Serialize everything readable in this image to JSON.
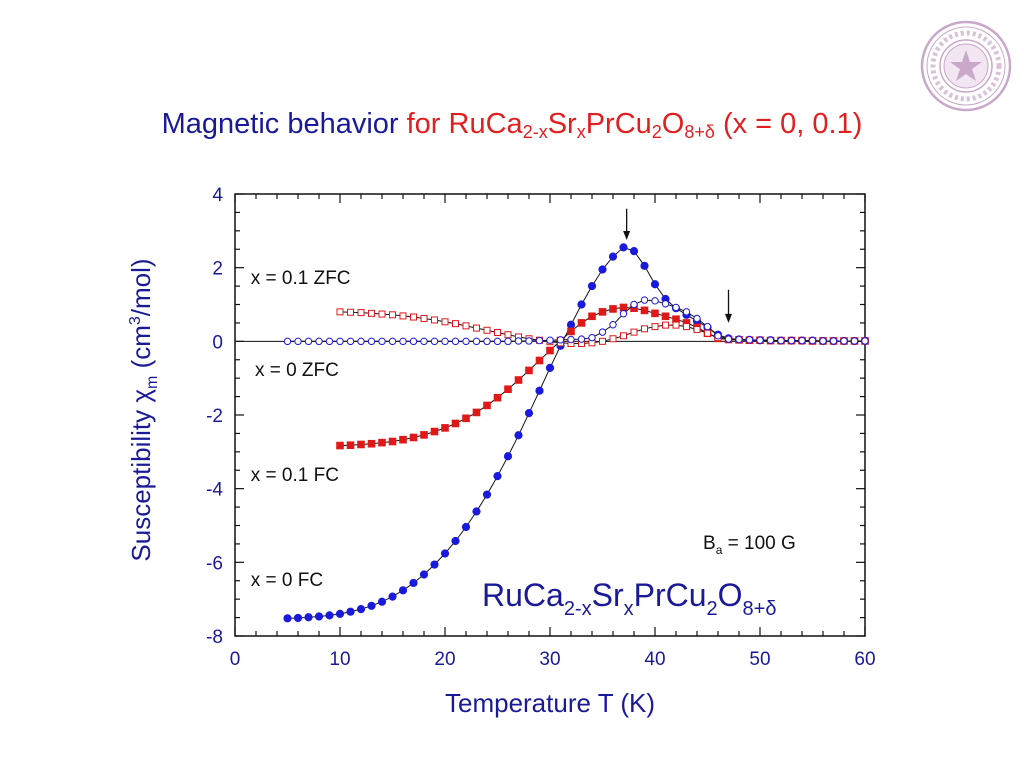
{
  "title": {
    "part1": "Magnetic behavior ",
    "part2": "for ",
    "formula_main": "RuCa",
    "sub1": "2-x",
    "f2": "Sr",
    "sub2": "x",
    "f3": "PrCu",
    "sub3": "2",
    "f4": "O",
    "sub4": "8+δ",
    "tail": " (x = 0, 0.1)"
  },
  "seal": {
    "name": "university-seal",
    "color": "#c9a8c9"
  },
  "colors": {
    "blue": "#1a1add",
    "red": "#e01818",
    "axis_text": "#1a1a99",
    "line": "#111111"
  },
  "chart_data": {
    "type": "scatter",
    "xlabel": "Temperature  T (K)",
    "ylabel_main": "Susceptibility  χ",
    "ylabel_sub": "m",
    "ylabel_unit_pre": "  (cm",
    "ylabel_unit_sup": "3",
    "ylabel_unit_post": "/mol)",
    "xlim": [
      0,
      60
    ],
    "ylim": [
      -8,
      4
    ],
    "xticks": [
      "0",
      "10",
      "20",
      "30",
      "40",
      "50",
      "60"
    ],
    "yticks": [
      "4",
      "2",
      "0",
      "-2",
      "-4",
      "-6",
      "-8"
    ],
    "annotations": [
      {
        "text": "x = 0.1 ZFC",
        "x": 1.5,
        "y": 1.75
      },
      {
        "text": "x = 0 ZFC",
        "x": 1.9,
        "y": -0.75
      },
      {
        "text": "x = 0.1 FC",
        "x": 1.5,
        "y": -3.6
      },
      {
        "text": "x = 0 FC",
        "x": 1.5,
        "y": -6.45
      }
    ],
    "field_label": {
      "pre": "B",
      "sub": "a",
      "post": " = 100 G"
    },
    "formula_label": {
      "a": "RuCa",
      "b": "2-x",
      "c": "Sr",
      "d": "x",
      "e": "PrCu",
      "f": "2",
      "g": "O",
      "h": "8+δ"
    },
    "arrows": [
      {
        "x": 37.3,
        "y_from": 3.6,
        "y_to": 2.75
      },
      {
        "x": 47.0,
        "y_from": 1.4,
        "y_to": 0.5
      }
    ],
    "series": [
      {
        "name": "x = 0 FC",
        "marker": "circle",
        "filled": true,
        "color": "#1a1add",
        "points": [
          [
            5,
            -7.52
          ],
          [
            6,
            -7.51
          ],
          [
            7,
            -7.49
          ],
          [
            8,
            -7.47
          ],
          [
            9,
            -7.44
          ],
          [
            10,
            -7.4
          ],
          [
            11,
            -7.34
          ],
          [
            12,
            -7.27
          ],
          [
            13,
            -7.18
          ],
          [
            14,
            -7.07
          ],
          [
            15,
            -6.93
          ],
          [
            16,
            -6.76
          ],
          [
            17,
            -6.56
          ],
          [
            18,
            -6.33
          ],
          [
            19,
            -6.06
          ],
          [
            20,
            -5.76
          ],
          [
            21,
            -5.42
          ],
          [
            22,
            -5.04
          ],
          [
            23,
            -4.62
          ],
          [
            24,
            -4.16
          ],
          [
            25,
            -3.66
          ],
          [
            26,
            -3.12
          ],
          [
            27,
            -2.55
          ],
          [
            28,
            -1.95
          ],
          [
            29,
            -1.34
          ],
          [
            30,
            -0.72
          ],
          [
            31,
            -0.12
          ],
          [
            32,
            0.45
          ],
          [
            33,
            1.0
          ],
          [
            34,
            1.5
          ],
          [
            35,
            1.95
          ],
          [
            36,
            2.3
          ],
          [
            37,
            2.55
          ],
          [
            38,
            2.45
          ],
          [
            39,
            2.05
          ],
          [
            40,
            1.55
          ],
          [
            41,
            1.15
          ],
          [
            42,
            0.9
          ],
          [
            43,
            0.72
          ],
          [
            44,
            0.55
          ],
          [
            45,
            0.38
          ],
          [
            46,
            0.18
          ],
          [
            47,
            0.08
          ],
          [
            48,
            0.05
          ],
          [
            49,
            0.04
          ],
          [
            50,
            0.03
          ],
          [
            51,
            0.03
          ],
          [
            52,
            0.02
          ],
          [
            53,
            0.02
          ],
          [
            54,
            0.02
          ],
          [
            55,
            0.02
          ],
          [
            56,
            0.01
          ],
          [
            57,
            0.01
          ],
          [
            58,
            0.01
          ],
          [
            59,
            0.01
          ],
          [
            60,
            0.01
          ]
        ]
      },
      {
        "name": "x = 0.1 FC",
        "marker": "square",
        "filled": true,
        "color": "#e01818",
        "points": [
          [
            10,
            -2.83
          ],
          [
            11,
            -2.82
          ],
          [
            12,
            -2.8
          ],
          [
            13,
            -2.78
          ],
          [
            14,
            -2.75
          ],
          [
            15,
            -2.72
          ],
          [
            16,
            -2.67
          ],
          [
            17,
            -2.61
          ],
          [
            18,
            -2.54
          ],
          [
            19,
            -2.45
          ],
          [
            20,
            -2.35
          ],
          [
            21,
            -2.23
          ],
          [
            22,
            -2.09
          ],
          [
            23,
            -1.93
          ],
          [
            24,
            -1.74
          ],
          [
            25,
            -1.53
          ],
          [
            26,
            -1.3
          ],
          [
            27,
            -1.05
          ],
          [
            28,
            -0.79
          ],
          [
            29,
            -0.52
          ],
          [
            30,
            -0.25
          ],
          [
            31,
            0.02
          ],
          [
            32,
            0.27
          ],
          [
            33,
            0.5
          ],
          [
            34,
            0.68
          ],
          [
            35,
            0.8
          ],
          [
            36,
            0.88
          ],
          [
            37,
            0.92
          ],
          [
            38,
            0.9
          ],
          [
            39,
            0.84
          ],
          [
            40,
            0.76
          ],
          [
            41,
            0.68
          ],
          [
            42,
            0.6
          ],
          [
            43,
            0.5
          ],
          [
            44,
            0.38
          ],
          [
            45,
            0.22
          ],
          [
            46,
            0.08
          ],
          [
            47,
            0.05
          ],
          [
            48,
            0.04
          ],
          [
            49,
            0.03
          ],
          [
            50,
            0.03
          ],
          [
            51,
            0.02
          ],
          [
            52,
            0.02
          ],
          [
            53,
            0.02
          ],
          [
            54,
            0.02
          ],
          [
            55,
            0.01
          ],
          [
            56,
            0.01
          ],
          [
            57,
            0.01
          ],
          [
            58,
            0.01
          ],
          [
            59,
            0.01
          ],
          [
            60,
            0.01
          ]
        ]
      },
      {
        "name": "x = 0.1 ZFC",
        "marker": "square",
        "filled": false,
        "color": "#e01818",
        "points": [
          [
            10,
            0.8
          ],
          [
            11,
            0.79
          ],
          [
            12,
            0.78
          ],
          [
            13,
            0.76
          ],
          [
            14,
            0.74
          ],
          [
            15,
            0.72
          ],
          [
            16,
            0.69
          ],
          [
            17,
            0.66
          ],
          [
            18,
            0.62
          ],
          [
            19,
            0.58
          ],
          [
            20,
            0.53
          ],
          [
            21,
            0.48
          ],
          [
            22,
            0.42
          ],
          [
            23,
            0.36
          ],
          [
            24,
            0.3
          ],
          [
            25,
            0.24
          ],
          [
            26,
            0.18
          ],
          [
            27,
            0.12
          ],
          [
            28,
            0.07
          ],
          [
            29,
            0.03
          ],
          [
            30,
            -0.01
          ],
          [
            31,
            -0.04
          ],
          [
            32,
            -0.06
          ],
          [
            33,
            -0.06
          ],
          [
            34,
            -0.04
          ],
          [
            35,
            0.0
          ],
          [
            36,
            0.07
          ],
          [
            37,
            0.15
          ],
          [
            38,
            0.25
          ],
          [
            39,
            0.34
          ],
          [
            40,
            0.4
          ],
          [
            41,
            0.44
          ],
          [
            42,
            0.44
          ],
          [
            43,
            0.4
          ],
          [
            44,
            0.32
          ],
          [
            45,
            0.22
          ],
          [
            46,
            0.1
          ],
          [
            47,
            0.05
          ],
          [
            48,
            0.04
          ],
          [
            49,
            0.03
          ],
          [
            50,
            0.03
          ],
          [
            51,
            0.02
          ],
          [
            52,
            0.02
          ],
          [
            53,
            0.02
          ],
          [
            54,
            0.02
          ],
          [
            55,
            0.01
          ],
          [
            56,
            0.01
          ],
          [
            57,
            0.01
          ],
          [
            58,
            0.01
          ],
          [
            59,
            0.01
          ],
          [
            60,
            0.01
          ]
        ]
      },
      {
        "name": "x = 0 ZFC",
        "marker": "circle",
        "filled": false,
        "color": "#1a1add",
        "points": [
          [
            5,
            0.0
          ],
          [
            6,
            0.0
          ],
          [
            7,
            0.0
          ],
          [
            8,
            0.0
          ],
          [
            9,
            0.0
          ],
          [
            10,
            0.0
          ],
          [
            11,
            0.0
          ],
          [
            12,
            0.0
          ],
          [
            13,
            0.0
          ],
          [
            14,
            0.0
          ],
          [
            15,
            0.0
          ],
          [
            16,
            0.0
          ],
          [
            17,
            0.0
          ],
          [
            18,
            0.0
          ],
          [
            19,
            0.0
          ],
          [
            20,
            0.0
          ],
          [
            21,
            0.0
          ],
          [
            22,
            0.0
          ],
          [
            23,
            0.0
          ],
          [
            24,
            0.0
          ],
          [
            25,
            0.0
          ],
          [
            26,
            0.0
          ],
          [
            27,
            0.01
          ],
          [
            28,
            0.01
          ],
          [
            29,
            0.02
          ],
          [
            30,
            0.03
          ],
          [
            31,
            0.04
          ],
          [
            32,
            0.05
          ],
          [
            33,
            0.06
          ],
          [
            34,
            0.1
          ],
          [
            35,
            0.25
          ],
          [
            36,
            0.45
          ],
          [
            37,
            0.75
          ],
          [
            38,
            1.0
          ],
          [
            39,
            1.12
          ],
          [
            40,
            1.1
          ],
          [
            41,
            1.02
          ],
          [
            42,
            0.92
          ],
          [
            43,
            0.8
          ],
          [
            44,
            0.62
          ],
          [
            45,
            0.4
          ],
          [
            46,
            0.15
          ],
          [
            47,
            0.06
          ],
          [
            48,
            0.05
          ],
          [
            49,
            0.04
          ],
          [
            50,
            0.03
          ],
          [
            51,
            0.03
          ],
          [
            52,
            0.02
          ],
          [
            53,
            0.02
          ],
          [
            54,
            0.02
          ],
          [
            55,
            0.02
          ],
          [
            56,
            0.01
          ],
          [
            57,
            0.01
          ],
          [
            58,
            0.01
          ],
          [
            59,
            0.01
          ],
          [
            60,
            0.01
          ]
        ]
      }
    ]
  }
}
